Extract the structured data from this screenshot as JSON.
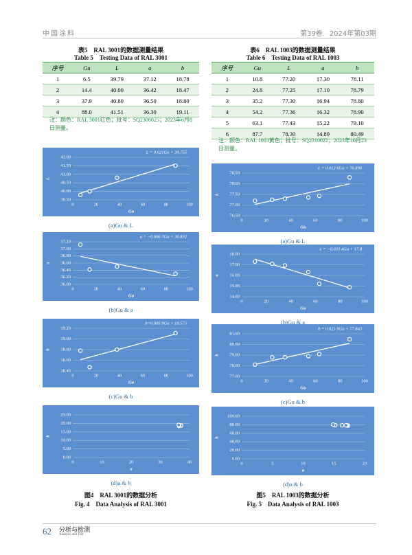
{
  "header": {
    "journal": "中国涂料",
    "issue": "第39卷　2024年第03期"
  },
  "table5": {
    "title": "表5　RAL 3001的数据测量结果",
    "title_en": "Table 5　Testing Data of RAL 3001",
    "columns": [
      "序号",
      "Gu",
      "L",
      "a",
      "b"
    ],
    "rows": [
      [
        "1",
        "6.5",
        "39.79",
        "37.12",
        "18.78"
      ],
      [
        "2",
        "14.4",
        "40.00",
        "36.42",
        "18.47"
      ],
      [
        "3",
        "37.9",
        "40.80",
        "36.50",
        "18.80"
      ],
      [
        "4",
        "88.0",
        "41.51",
        "36.30",
        "19.11"
      ]
    ],
    "note": "注：颜色：RAL 3001红色；批号：SQ2306025；2023年6月8日测量。"
  },
  "table6": {
    "title": "表6　RAL 1003的数据测量结果",
    "title_en": "Table 6　Testing Data of RAL 1003",
    "columns": [
      "序号",
      "Gu",
      "L",
      "a",
      "b"
    ],
    "rows": [
      [
        "1",
        "10.8",
        "77.20",
        "17.30",
        "78.11"
      ],
      [
        "2",
        "24.8",
        "77.25",
        "17.10",
        "78.79"
      ],
      [
        "3",
        "35.2",
        "77.30",
        "16.94",
        "78.80"
      ],
      [
        "4",
        "54.2",
        "77.36",
        "16.32",
        "78.90"
      ],
      [
        "5",
        "63.1",
        "77.43",
        "15.22",
        "79.10"
      ],
      [
        "6",
        "87.7",
        "78.30",
        "14.89",
        "80.49"
      ]
    ],
    "note": "注：颜色：RAL 1003黄色；批号：SQ2310022；2023年10月23日测量。"
  },
  "chart_data": [
    {
      "type": "scatter",
      "title": "L = 0.021Gu + 39.755",
      "xlabel": "Gu",
      "ylabel": "L",
      "caption": "(a)Gu & L",
      "x": [
        6.5,
        14.4,
        37.9,
        88.0
      ],
      "values": [
        39.79,
        40.0,
        40.8,
        41.51
      ],
      "xlim": [
        0,
        100
      ],
      "xticks": [
        0,
        20,
        40,
        60,
        80,
        100
      ],
      "ylim": [
        39.5,
        42
      ],
      "yticks": [
        {
          "value": 39.5,
          "label": "39.50"
        },
        {
          "value": 40,
          "label": "40.00"
        },
        {
          "value": 40.5,
          "label": "40.50"
        },
        {
          "value": 41,
          "label": "41.00"
        },
        {
          "value": 41.5,
          "label": "41.50"
        },
        {
          "value": 42,
          "label": "42.00"
        }
      ],
      "trendline": true,
      "grid": true,
      "color": "#ffffff"
    },
    {
      "type": "scatter",
      "title": "a = −0.006 7Gu + 36.832",
      "xlabel": "Gu",
      "ylabel": "a",
      "caption": "(b)Gu & a",
      "x": [
        6.5,
        14.4,
        37.9,
        88.0
      ],
      "values": [
        37.12,
        36.42,
        36.5,
        36.3
      ],
      "xlim": [
        0,
        100
      ],
      "xticks": [
        0,
        20,
        40,
        60,
        80,
        100
      ],
      "ylim": [
        36,
        37.2
      ],
      "yticks": [
        {
          "value": 36,
          "label": "36.00"
        },
        {
          "value": 36.2,
          "label": "36.20"
        },
        {
          "value": 36.4,
          "label": "36.40"
        },
        {
          "value": 36.6,
          "label": "36.60"
        },
        {
          "value": 36.8,
          "label": "36.80"
        },
        {
          "value": 37,
          "label": "37.00"
        },
        {
          "value": 37.2,
          "label": "37.20"
        }
      ],
      "trendline": true,
      "grid": true,
      "color": "#ffffff"
    },
    {
      "type": "scatter",
      "title": "b=0.005 9Gu + 18.573",
      "xlabel": "Gu",
      "ylabel": "b",
      "caption": "(c)Gu & b",
      "x": [
        6.5,
        14.4,
        37.9,
        88.0
      ],
      "values": [
        18.78,
        18.47,
        18.8,
        19.11
      ],
      "xlim": [
        0,
        100
      ],
      "xticks": [
        0,
        20,
        40,
        60,
        80,
        100
      ],
      "ylim": [
        18.4,
        19.2
      ],
      "yticks": [
        {
          "value": 18.4,
          "label": "18.40"
        },
        {
          "value": 18.6,
          "label": "18.60"
        },
        {
          "value": 18.8,
          "label": "18.80"
        },
        {
          "value": 19,
          "label": "19.00"
        },
        {
          "value": 19.2,
          "label": "19.20"
        }
      ],
      "trendline": true,
      "grid": true,
      "color": "#ffffff"
    },
    {
      "type": "scatter",
      "xlabel": "a",
      "ylabel": "b",
      "caption": "(d)a & b",
      "x": [
        37.12,
        36.42,
        36.5,
        36.3
      ],
      "values": [
        18.78,
        18.47,
        18.8,
        19.11
      ],
      "xlim": [
        0,
        40
      ],
      "xticks": [
        0,
        10,
        20,
        30,
        40
      ],
      "ylim": [
        0,
        25
      ],
      "yticks": [
        {
          "value": 0,
          "label": "0.00"
        },
        {
          "value": 5,
          "label": "5.00"
        },
        {
          "value": 10,
          "label": "10.00"
        },
        {
          "value": 15,
          "label": "15.00"
        },
        {
          "value": 20,
          "label": "20.00"
        },
        {
          "value": 25,
          "label": "25.00"
        }
      ],
      "trendline": false,
      "grid": true,
      "color": "#ffffff"
    },
    {
      "type": "scatter",
      "title": "L = 0.012 6Gu + 76.896",
      "xlabel": "Gu",
      "ylabel": "L",
      "caption": "(a)Gu & L",
      "x": [
        10.8,
        24.8,
        35.2,
        54.2,
        63.1,
        87.7
      ],
      "values": [
        77.2,
        77.25,
        77.3,
        77.36,
        77.43,
        78.3
      ],
      "xlim": [
        0,
        100
      ],
      "xticks": [
        0,
        20,
        40,
        60,
        80,
        100
      ],
      "ylim": [
        76.5,
        78.5
      ],
      "yticks": [
        {
          "value": 76.5,
          "label": "76.50"
        },
        {
          "value": 77,
          "label": "77.00"
        },
        {
          "value": 77.5,
          "label": "77.50"
        },
        {
          "value": 78,
          "label": "78.00"
        },
        {
          "value": 78.5,
          "label": "78.50"
        }
      ],
      "trendline": true,
      "grid": true,
      "color": "#ffffff"
    },
    {
      "type": "scatter",
      "title": "a = −0.033 4Gu + 17.8",
      "xlabel": "Gu",
      "ylabel": "a",
      "caption": "(b)Gu & a",
      "x": [
        10.8,
        24.8,
        35.2,
        54.2,
        63.1,
        87.7
      ],
      "values": [
        17.3,
        17.1,
        16.94,
        16.32,
        15.22,
        14.89
      ],
      "xlim": [
        0,
        100
      ],
      "xticks": [
        0,
        20,
        40,
        60,
        80,
        100
      ],
      "ylim": [
        14,
        18
      ],
      "yticks": [
        {
          "value": 14,
          "label": "14.00"
        },
        {
          "value": 15,
          "label": "15.00"
        },
        {
          "value": 16,
          "label": "16.00"
        },
        {
          "value": 17,
          "label": "17.00"
        },
        {
          "value": 18,
          "label": "18.00"
        }
      ],
      "trendline": true,
      "grid": true,
      "color": "#ffffff"
    },
    {
      "type": "scatter",
      "title": "b = 0.025 9Gu + 77.843",
      "xlabel": "Gu",
      "ylabel": "b",
      "caption": "(c)Gu & b",
      "x": [
        10.8,
        24.8,
        35.2,
        54.2,
        63.1,
        87.7
      ],
      "values": [
        78.11,
        78.79,
        78.8,
        78.9,
        79.1,
        80.49
      ],
      "xlim": [
        0,
        100
      ],
      "xticks": [
        0,
        20,
        40,
        60,
        80,
        100
      ],
      "ylim": [
        77,
        81
      ],
      "yticks": [
        {
          "value": 77,
          "label": "77.00"
        },
        {
          "value": 78,
          "label": "78.00"
        },
        {
          "value": 79,
          "label": "79.00"
        },
        {
          "value": 80,
          "label": "80.00"
        },
        {
          "value": 81,
          "label": "81.00"
        }
      ],
      "trendline": true,
      "grid": true,
      "color": "#ffffff"
    },
    {
      "type": "scatter",
      "xlabel": "a",
      "ylabel": "b",
      "caption": "(d)a & b",
      "x": [
        17.3,
        17.1,
        16.94,
        16.32,
        15.22,
        14.89
      ],
      "values": [
        78.11,
        78.79,
        78.8,
        78.9,
        79.1,
        80.49
      ],
      "xlim": [
        0,
        20
      ],
      "xticks": [
        0,
        5,
        10,
        15,
        20
      ],
      "ylim": [
        0,
        100
      ],
      "yticks": [
        {
          "value": 0,
          "label": "0.00"
        },
        {
          "value": 20,
          "label": "20.00"
        },
        {
          "value": 40,
          "label": "40.00"
        },
        {
          "value": 60,
          "label": "60.00"
        },
        {
          "value": 80,
          "label": "80.00"
        },
        {
          "value": 100,
          "label": "100.00"
        }
      ],
      "trendline": false,
      "grid": true,
      "color": "#ffffff"
    }
  ],
  "figures": [
    {
      "title": "图4　RAL 3001的数据分析",
      "title_en": "Fig. 4　Data Analysis of RAL 3001"
    },
    {
      "title": "图5　RAL 1003的数据分析",
      "title_en": "Fig. 5　Data Analysis of RAL 1003"
    }
  ],
  "footer": {
    "page": "62",
    "section": "分析与检测",
    "section_en": "Analysis and Test"
  }
}
